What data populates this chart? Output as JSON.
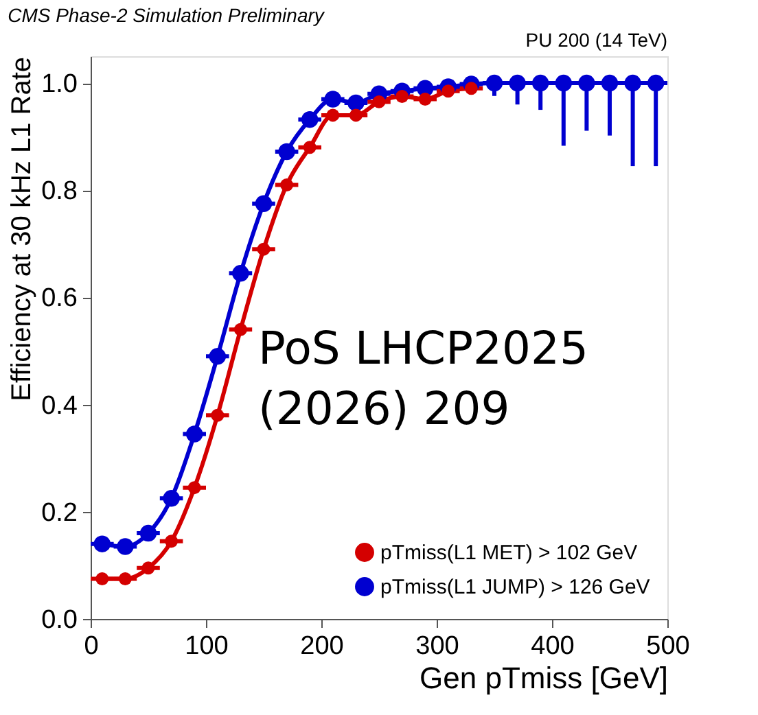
{
  "chart_data": {
    "type": "line",
    "title": "CMS Phase-2 Simulation Preliminary",
    "xlabel": "Gen pTmiss [GeV]",
    "ylabel": "Efficiency at 30 kHz L1 Rate",
    "annotations": [
      "PU 200 (14 TeV)",
      "PoS LHCP2025\n(2026) 209"
    ],
    "x": [
      10,
      30,
      50,
      70,
      90,
      110,
      130,
      150,
      170,
      190,
      210,
      230,
      250,
      270,
      290,
      310,
      330,
      350,
      370,
      390,
      410,
      430,
      450,
      470,
      490
    ],
    "series": [
      {
        "name": "pTmiss(L1 MET) > 102 GeV",
        "color": "#d40000",
        "values": [
          0.075,
          0.075,
          0.095,
          0.145,
          0.245,
          0.38,
          0.54,
          0.69,
          0.81,
          0.88,
          0.94,
          0.94,
          0.965,
          0.975,
          0.97,
          0.985,
          0.99,
          null,
          null,
          null,
          null,
          null,
          null,
          null,
          null
        ],
        "xerrors": [
          10,
          10,
          10,
          10,
          10,
          10,
          10,
          10,
          10,
          10,
          10,
          10,
          10,
          10,
          10,
          10,
          10,
          null,
          null,
          null,
          null,
          null,
          null,
          null,
          null
        ]
      },
      {
        "name": "pTmiss(L1 JUMP) > 126 GeV",
        "color": "#0000d0",
        "values": [
          0.14,
          0.135,
          0.16,
          0.225,
          0.345,
          0.49,
          0.645,
          0.775,
          0.872,
          0.932,
          0.97,
          0.963,
          0.98,
          0.985,
          0.99,
          0.993,
          0.998,
          1.0,
          1.0,
          1.0,
          1.0,
          1.0,
          1.0,
          1.0,
          1.0
        ],
        "xerrors": [
          10,
          10,
          10,
          10,
          10,
          10,
          10,
          10,
          10,
          10,
          10,
          10,
          10,
          10,
          10,
          10,
          10,
          10,
          10,
          10,
          10,
          10,
          10,
          10,
          10
        ],
        "errors": [
          null,
          null,
          null,
          null,
          null,
          null,
          null,
          null,
          null,
          null,
          null,
          null,
          null,
          null,
          null,
          null,
          null,
          [
            0.976,
            1.0
          ],
          [
            0.96,
            1.0
          ],
          [
            0.95,
            1.0
          ],
          [
            0.883,
            1.0
          ],
          [
            0.911,
            1.0
          ],
          [
            0.902,
            1.0
          ],
          [
            0.845,
            1.0
          ],
          [
            0.845,
            1.0
          ]
        ]
      }
    ],
    "xlim": [
      0,
      500
    ],
    "xticks": [
      0,
      100,
      200,
      300,
      400,
      500
    ],
    "ylim": [
      0,
      1.05
    ],
    "yticks": [
      {
        "value": 0,
        "label": "0.0"
      },
      {
        "value": 0.2,
        "label": "0.2"
      },
      {
        "value": 0.4,
        "label": "0.4"
      },
      {
        "value": 0.6,
        "label": "0.6"
      },
      {
        "value": 0.8,
        "label": "0.8"
      },
      {
        "value": 1.0,
        "label": "1.0"
      }
    ],
    "marker": "circle",
    "line_style": "solid",
    "grid": false,
    "legend": "bottom right"
  }
}
